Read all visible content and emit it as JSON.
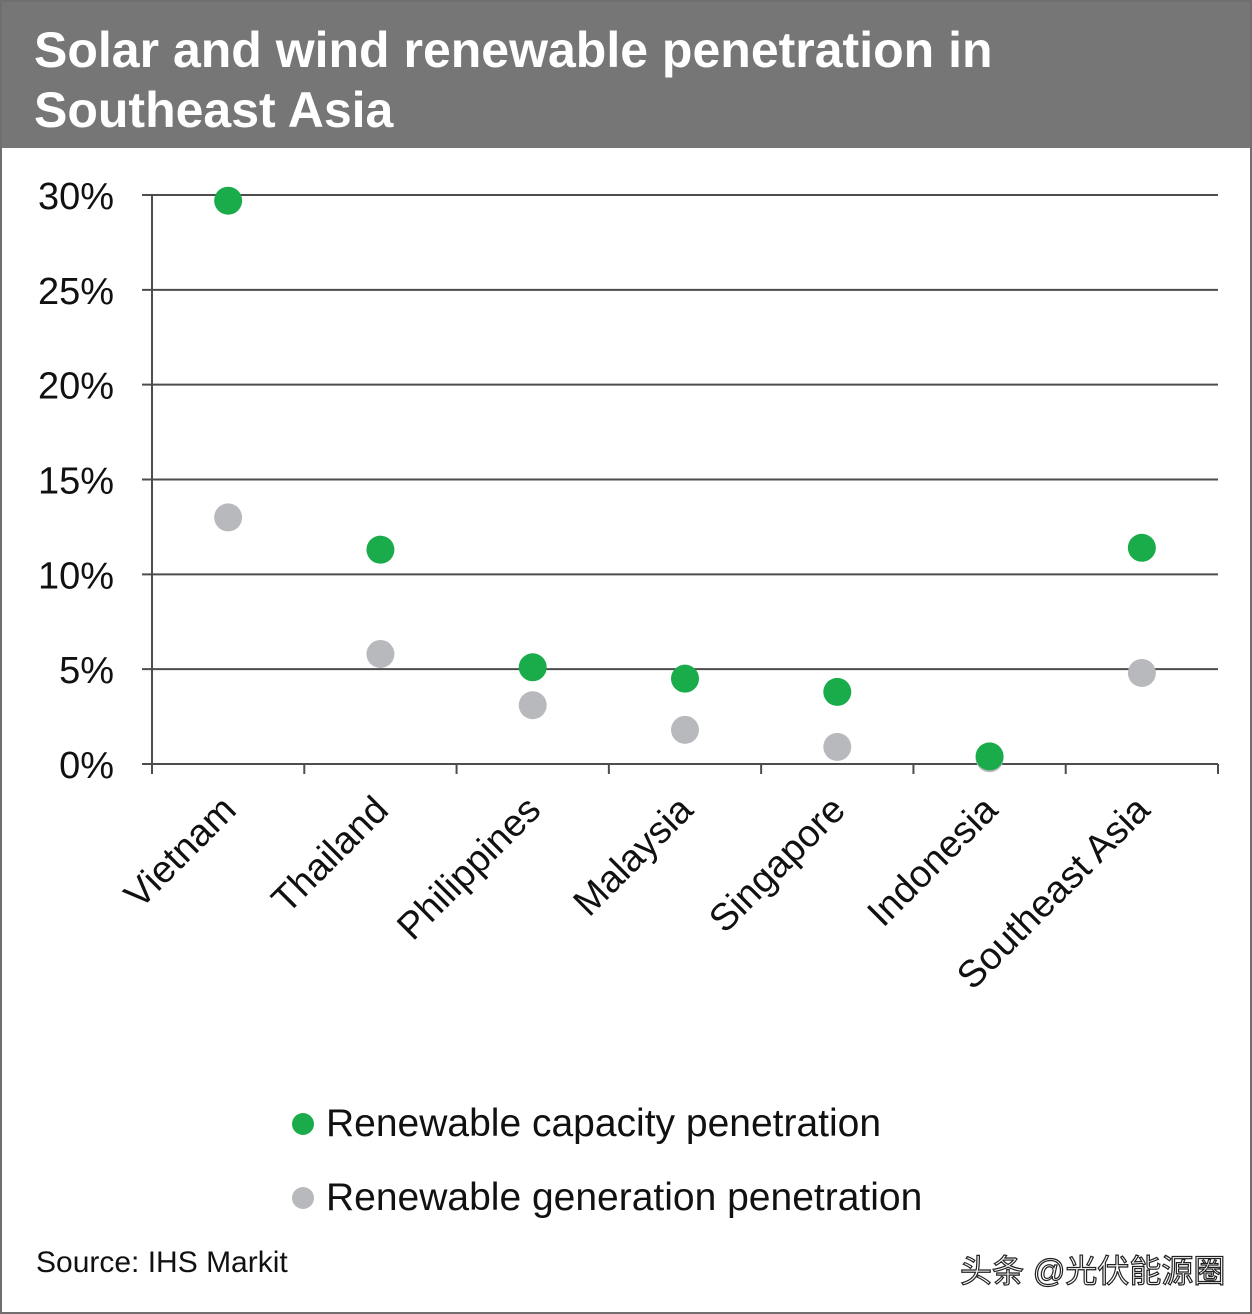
{
  "header": {
    "title_line1": "Solar and wind renewable penetration in",
    "title_line2": "Southeast Asia"
  },
  "chart_data": {
    "type": "scatter",
    "title": "Solar and wind renewable penetration in Southeast Asia",
    "categories": [
      "Vietnam",
      "Thailand",
      "Philippines",
      "Malaysia",
      "Singapore",
      "Indonesia",
      "Southeast Asia"
    ],
    "ylim": [
      0,
      30
    ],
    "yticks": [
      0,
      5,
      10,
      15,
      20,
      25,
      30
    ],
    "ytick_labels": [
      "0%",
      "5%",
      "10%",
      "15%",
      "20%",
      "25%",
      "30%"
    ],
    "grid": true,
    "legend_placement": "bottom",
    "series": [
      {
        "name": "Renewable capacity penetration",
        "color": "#1aab4b",
        "values": [
          29.7,
          11.3,
          5.1,
          4.5,
          3.8,
          0.4,
          11.4
        ]
      },
      {
        "name": "Renewable generation penetration",
        "color": "#b8b9bd",
        "values": [
          13.0,
          5.8,
          3.1,
          1.8,
          0.9,
          0.3,
          4.8
        ]
      }
    ]
  },
  "footer": {
    "source": "Source: IHS Markit",
    "watermark": "头条 @光伏能源圈"
  },
  "colors": {
    "title_bar": "#767676",
    "gridline": "#4d4d4d",
    "capacity": "#1aab4b",
    "generation": "#b8b9bd"
  }
}
